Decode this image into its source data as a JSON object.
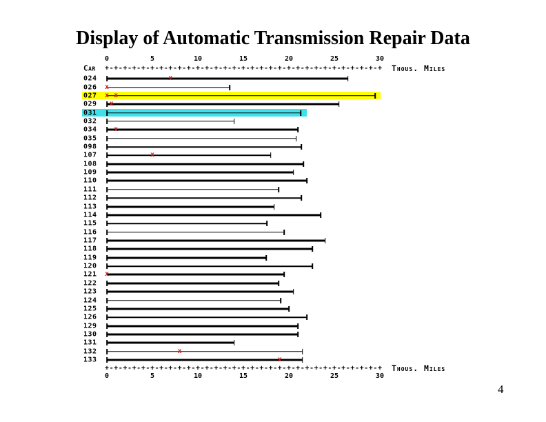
{
  "slide": {
    "title": "Display of Automatic Transmission Repair Data",
    "page_number": "4"
  },
  "chart_data": {
    "type": "bar",
    "orientation": "horizontal",
    "title": "Display of Automatic Transmission Repair Data",
    "xlabel": "Thous. Miles",
    "ylabel": "Car",
    "xlim": [
      0,
      30
    ],
    "xticks": [
      0,
      5,
      10,
      15,
      20,
      25,
      30
    ],
    "grid": false,
    "legend": null,
    "axis_corner_label": "Car",
    "axis_right_label": "Thous. Miles",
    "axis_pattern": {
      "plus": "+",
      "dash": "-"
    },
    "mark_glyph": "x",
    "mark_color": "#c32020",
    "line_color": "#000000",
    "rows": [
      {
        "car": "024",
        "end": 26.5,
        "marks": [
          7
        ],
        "bold": true,
        "highlight": null,
        "highlight_end": null
      },
      {
        "car": "026",
        "end": 13.5,
        "marks": [
          0
        ],
        "bold": false,
        "highlight": null,
        "highlight_end": null
      },
      {
        "car": "027",
        "end": 29.5,
        "marks": [
          0,
          1
        ],
        "bold": false,
        "highlight": "#ffff00",
        "highlight_end": 30
      },
      {
        "car": "029",
        "end": 25.5,
        "marks": [
          0.5
        ],
        "bold": true,
        "highlight": null,
        "highlight_end": null
      },
      {
        "car": "031",
        "end": 21.3,
        "marks": [],
        "bold": false,
        "highlight": "#3ee0ea",
        "highlight_end": 21.9
      },
      {
        "car": "032",
        "end": 14.0,
        "marks": [],
        "bold": false,
        "highlight": null,
        "highlight_end": null
      },
      {
        "car": "034",
        "end": 21.0,
        "marks": [
          1
        ],
        "bold": true,
        "highlight": null,
        "highlight_end": null
      },
      {
        "car": "035",
        "end": 20.8,
        "marks": [],
        "bold": false,
        "highlight": null,
        "highlight_end": null
      },
      {
        "car": "098",
        "end": 21.4,
        "marks": [],
        "bold": false,
        "highlight": null,
        "highlight_end": null
      },
      {
        "car": "107",
        "end": 18.0,
        "marks": [
          5
        ],
        "bold": false,
        "highlight": null,
        "highlight_end": null
      },
      {
        "car": "108",
        "end": 21.6,
        "marks": [],
        "bold": true,
        "highlight": null,
        "highlight_end": null
      },
      {
        "car": "109",
        "end": 20.5,
        "marks": [],
        "bold": true,
        "highlight": null,
        "highlight_end": null
      },
      {
        "car": "110",
        "end": 22.0,
        "marks": [],
        "bold": true,
        "highlight": null,
        "highlight_end": null
      },
      {
        "car": "111",
        "end": 18.9,
        "marks": [],
        "bold": false,
        "highlight": null,
        "highlight_end": null
      },
      {
        "car": "112",
        "end": 21.4,
        "marks": [],
        "bold": false,
        "highlight": null,
        "highlight_end": null
      },
      {
        "car": "113",
        "end": 18.4,
        "marks": [],
        "bold": true,
        "highlight": null,
        "highlight_end": null
      },
      {
        "car": "114",
        "end": 23.5,
        "marks": [],
        "bold": true,
        "highlight": null,
        "highlight_end": null
      },
      {
        "car": "115",
        "end": 17.6,
        "marks": [],
        "bold": false,
        "highlight": null,
        "highlight_end": null
      },
      {
        "car": "116",
        "end": 19.5,
        "marks": [],
        "bold": false,
        "highlight": null,
        "highlight_end": null
      },
      {
        "car": "117",
        "end": 24.0,
        "marks": [],
        "bold": true,
        "highlight": null,
        "highlight_end": null
      },
      {
        "car": "118",
        "end": 22.6,
        "marks": [],
        "bold": true,
        "highlight": null,
        "highlight_end": null
      },
      {
        "car": "119",
        "end": 17.5,
        "marks": [],
        "bold": true,
        "highlight": null,
        "highlight_end": null
      },
      {
        "car": "120",
        "end": 22.6,
        "marks": [],
        "bold": false,
        "highlight": null,
        "highlight_end": null
      },
      {
        "car": "121",
        "end": 19.5,
        "marks": [
          0
        ],
        "bold": true,
        "highlight": null,
        "highlight_end": null
      },
      {
        "car": "122",
        "end": 18.9,
        "marks": [],
        "bold": true,
        "highlight": null,
        "highlight_end": null
      },
      {
        "car": "123",
        "end": 20.5,
        "marks": [],
        "bold": true,
        "highlight": null,
        "highlight_end": null
      },
      {
        "car": "124",
        "end": 19.1,
        "marks": [],
        "bold": false,
        "highlight": null,
        "highlight_end": null
      },
      {
        "car": "125",
        "end": 20.0,
        "marks": [],
        "bold": true,
        "highlight": null,
        "highlight_end": null
      },
      {
        "car": "126",
        "end": 22.0,
        "marks": [],
        "bold": false,
        "highlight": null,
        "highlight_end": null
      },
      {
        "car": "129",
        "end": 21.0,
        "marks": [],
        "bold": true,
        "highlight": null,
        "highlight_end": null
      },
      {
        "car": "130",
        "end": 21.0,
        "marks": [],
        "bold": true,
        "highlight": null,
        "highlight_end": null
      },
      {
        "car": "131",
        "end": 14.0,
        "marks": [],
        "bold": true,
        "highlight": null,
        "highlight_end": null
      },
      {
        "car": "132",
        "end": 21.5,
        "marks": [
          8
        ],
        "bold": false,
        "highlight": null,
        "highlight_end": null
      },
      {
        "car": "133",
        "end": 21.5,
        "marks": [
          19
        ],
        "bold": true,
        "highlight": null,
        "highlight_end": null
      }
    ]
  },
  "colors": {
    "background": "#ffffff",
    "text": "#000000",
    "mark": "#c32020",
    "highlight_yellow": "#ffff00",
    "highlight_cyan": "#3ee0ea"
  }
}
